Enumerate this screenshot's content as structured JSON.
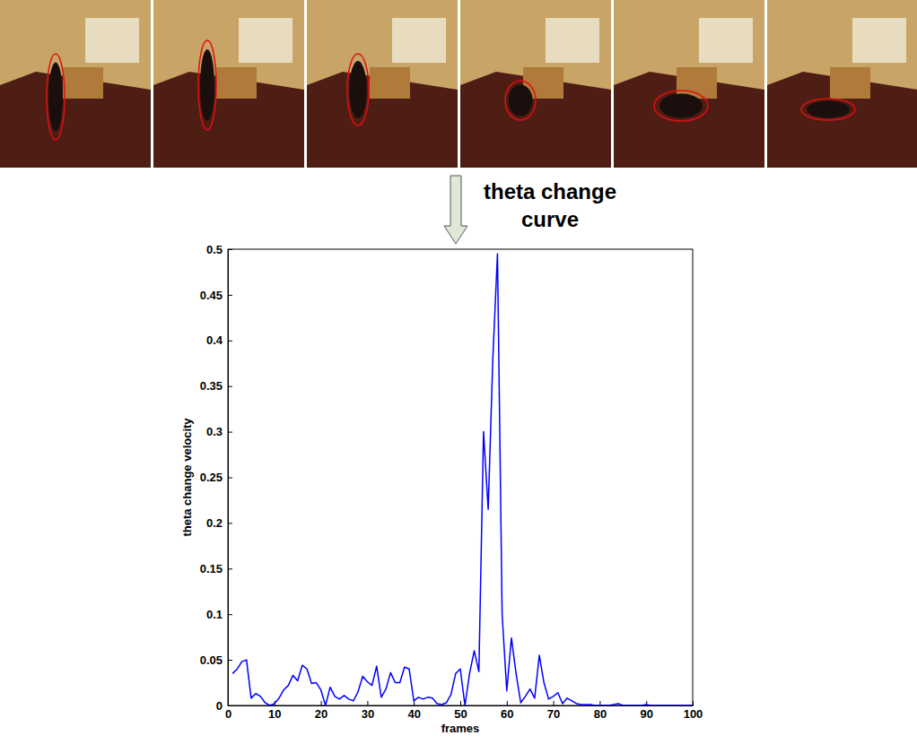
{
  "chart_data": {
    "type": "line",
    "annotations": [
      "theta change curve"
    ],
    "x_label": "frames",
    "y_label": "theta change velocity",
    "x": [
      1,
      2,
      3,
      4,
      5,
      6,
      7,
      8,
      9,
      10,
      11,
      12,
      13,
      14,
      15,
      16,
      17,
      18,
      19,
      20,
      21,
      22,
      23,
      24,
      25,
      26,
      27,
      28,
      29,
      30,
      31,
      32,
      33,
      34,
      35,
      36,
      37,
      38,
      39,
      40,
      41,
      42,
      43,
      44,
      45,
      46,
      47,
      48,
      49,
      50,
      51,
      52,
      53,
      54,
      55,
      56,
      57,
      58,
      59,
      60,
      61,
      62,
      63,
      64,
      65,
      66,
      67,
      68,
      69,
      70,
      71,
      72,
      73,
      74,
      75,
      76,
      77,
      78,
      79,
      80,
      81,
      82,
      83,
      84,
      85,
      86,
      87,
      88,
      89,
      90,
      91,
      92,
      93,
      94,
      95,
      96,
      97,
      98,
      99,
      100
    ],
    "values": [
      0.035,
      0.04,
      0.048,
      0.05,
      0.008,
      0.013,
      0.01,
      0.003,
      0.0,
      0.002,
      0.008,
      0.017,
      0.022,
      0.033,
      0.027,
      0.044,
      0.04,
      0.024,
      0.025,
      0.017,
      0.0,
      0.02,
      0.01,
      0.007,
      0.011,
      0.007,
      0.005,
      0.015,
      0.032,
      0.026,
      0.022,
      0.043,
      0.009,
      0.018,
      0.036,
      0.025,
      0.025,
      0.042,
      0.04,
      0.005,
      0.009,
      0.007,
      0.009,
      0.008,
      0.002,
      0.001,
      0.003,
      0.012,
      0.035,
      0.04,
      0.0,
      0.035,
      0.06,
      0.037,
      0.3,
      0.215,
      0.38,
      0.495,
      0.1,
      0.016,
      0.074,
      0.035,
      0.003,
      0.01,
      0.018,
      0.008,
      0.055,
      0.025,
      0.007,
      0.01,
      0.014,
      0.002,
      0.008,
      0.005,
      0.002,
      0.001,
      0.001,
      0.001,
      0.0,
      0.0,
      0.0,
      0.0,
      0.001,
      0.002,
      0.0,
      0.0,
      0.0,
      0.0,
      0.0,
      0.001,
      0.0,
      0.0,
      0.0,
      0.0,
      0.0,
      0.0,
      0.0,
      0.0,
      0.0,
      0.0
    ],
    "color": "#0000ff",
    "xlim": [
      0,
      100
    ],
    "xticks": [
      0,
      10,
      20,
      30,
      40,
      50,
      60,
      70,
      80,
      90,
      100
    ],
    "ylim": [
      0,
      0.5
    ],
    "yticks": [
      0,
      0.05,
      0.1,
      0.15,
      0.2,
      0.25,
      0.3,
      0.35,
      0.4,
      0.45,
      0.5
    ],
    "grid": false
  }
}
